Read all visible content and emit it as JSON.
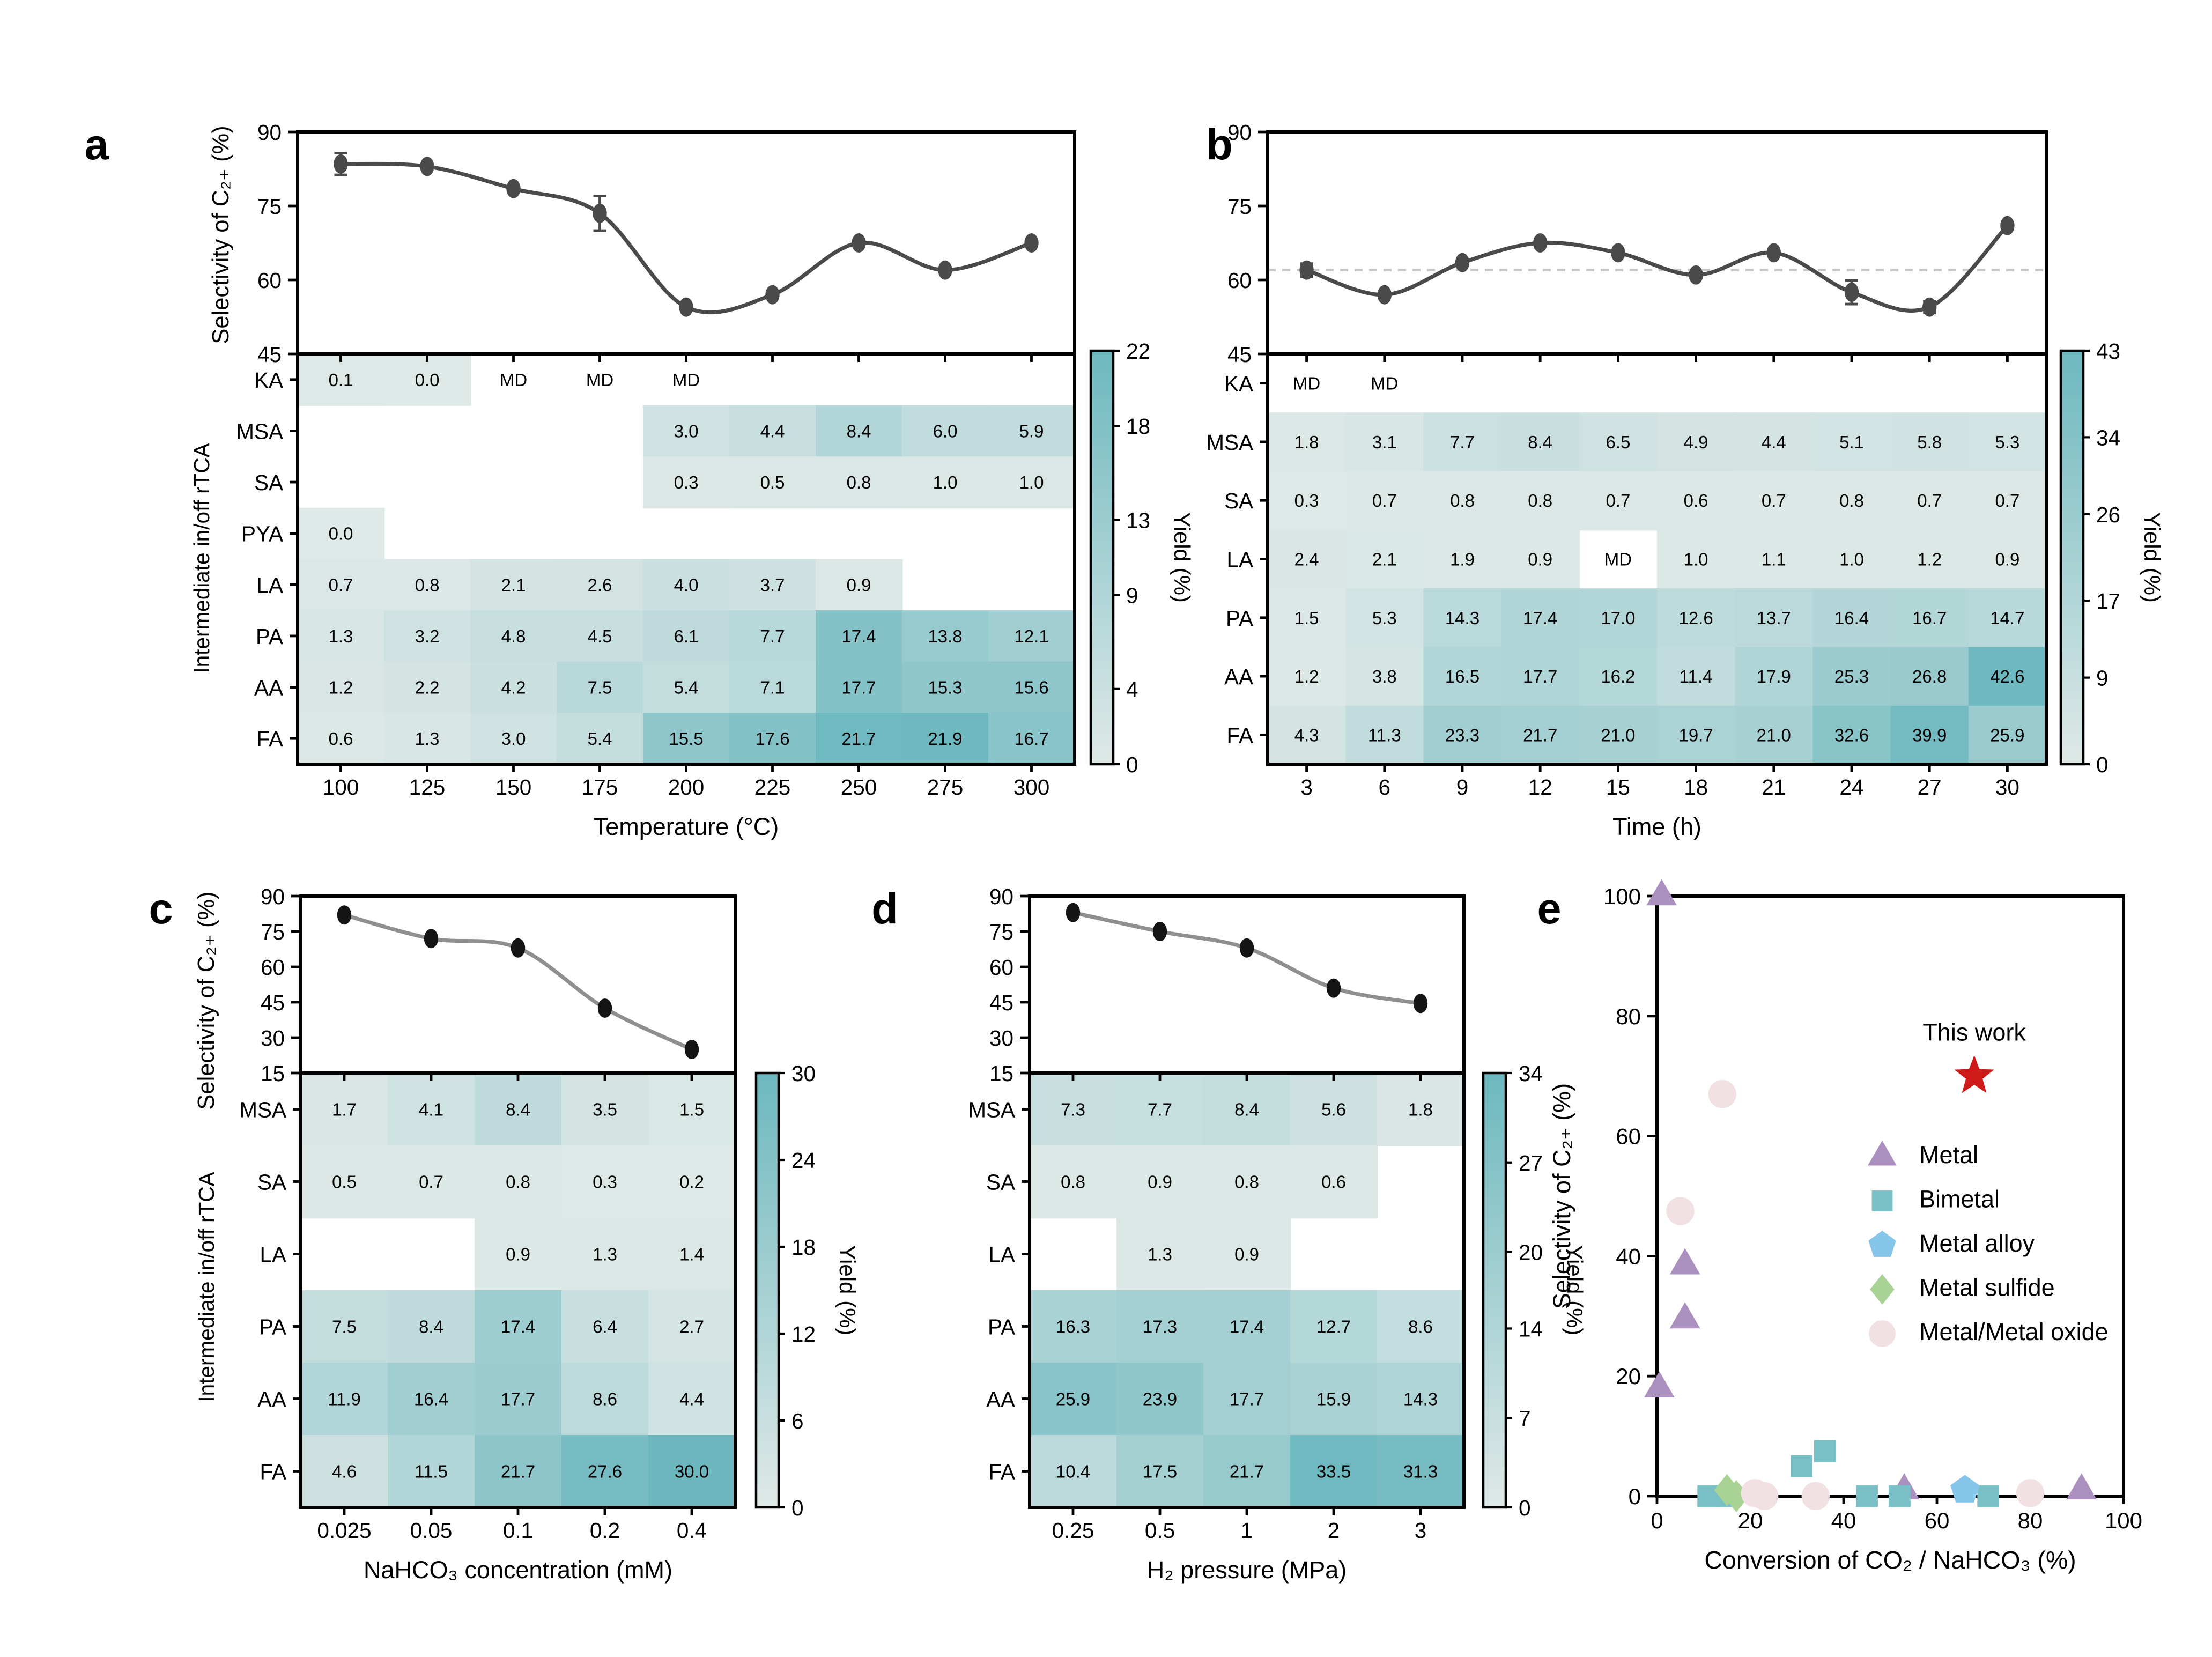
{
  "figure": {
    "description": "Five-panel scientific figure: selectivity line plots with intermediate-yield heatmaps (a-d) and a benchmark scatter plot (e)",
    "colors": {
      "heatmap_low": "#dfe9e7",
      "heatmap_high": "#6db8bf",
      "line_ab": "#4a4a4a",
      "line_cd": "#8f8f8f",
      "marker_cd": "#141414",
      "dashed_ref": "#c9c9c9",
      "axis": "#000000"
    }
  },
  "chart_data": [
    {
      "panel": "a",
      "type": "line+heatmap",
      "line": {
        "ylabel": "Selectivity of C₂₊ (%)",
        "ylim": [
          45,
          90
        ],
        "yticks": [
          45,
          60,
          75,
          90
        ],
        "x": [
          100,
          125,
          150,
          175,
          200,
          225,
          250,
          275,
          300
        ],
        "y": [
          83.5,
          83,
          78.5,
          73.5,
          54.5,
          57,
          67.5,
          62,
          67.5
        ],
        "yerr": [
          2.2,
          0,
          0,
          3.5,
          0,
          0,
          0,
          0,
          0
        ]
      },
      "heatmap": {
        "ylabel": "Intermediate in/off rTCA",
        "xlabel": "Temperature (°C)",
        "rows": [
          "KA",
          "MSA",
          "SA",
          "PYA",
          "LA",
          "PA",
          "AA",
          "FA"
        ],
        "cols": [
          "100",
          "125",
          "150",
          "175",
          "200",
          "225",
          "250",
          "275",
          "300"
        ],
        "values": [
          [
            0.1,
            0.0,
            "MD",
            "MD",
            "MD",
            null,
            null,
            null,
            null
          ],
          [
            null,
            null,
            null,
            null,
            3.0,
            4.4,
            8.4,
            6.0,
            5.9
          ],
          [
            null,
            null,
            null,
            null,
            0.3,
            0.5,
            0.8,
            1.0,
            1.0
          ],
          [
            0.0,
            null,
            null,
            null,
            null,
            null,
            null,
            null,
            null
          ],
          [
            0.7,
            0.8,
            2.1,
            2.6,
            4.0,
            3.7,
            0.9,
            null,
            null
          ],
          [
            1.3,
            3.2,
            4.8,
            4.5,
            6.1,
            7.7,
            17.4,
            13.8,
            12.1
          ],
          [
            1.2,
            2.2,
            4.2,
            7.5,
            5.4,
            7.1,
            17.7,
            15.3,
            15.6
          ],
          [
            0.6,
            1.3,
            3.0,
            5.4,
            15.5,
            17.6,
            21.7,
            21.9,
            16.7
          ]
        ],
        "colorbar": {
          "label": "Yield (%)",
          "vmax": 22,
          "ticks": [
            0,
            4,
            9,
            13,
            18,
            22
          ]
        }
      }
    },
    {
      "panel": "b",
      "type": "line+heatmap",
      "line": {
        "ylim": [
          45,
          90
        ],
        "yticks": [
          45,
          60,
          75,
          90
        ],
        "x": [
          3,
          6,
          9,
          12,
          15,
          18,
          21,
          24,
          27,
          30
        ],
        "y": [
          62,
          57,
          63.5,
          67.5,
          65.5,
          61,
          65.5,
          57.5,
          54.5,
          71
        ],
        "yerr": [
          1.3,
          0,
          0,
          0,
          0,
          0,
          0,
          2.4,
          1.2,
          0
        ],
        "dashed_ref": 62
      },
      "heatmap": {
        "xlabel": "Time (h)",
        "rows": [
          "KA",
          "MSA",
          "SA",
          "LA",
          "PA",
          "AA",
          "FA"
        ],
        "cols": [
          "3",
          "6",
          "9",
          "12",
          "15",
          "18",
          "21",
          "24",
          "27",
          "30"
        ],
        "values": [
          [
            "MD",
            "MD",
            null,
            null,
            null,
            null,
            null,
            null,
            null,
            null
          ],
          [
            1.8,
            3.1,
            7.7,
            8.4,
            6.5,
            4.9,
            4.4,
            5.1,
            5.8,
            5.3
          ],
          [
            0.3,
            0.7,
            0.8,
            0.8,
            0.7,
            0.6,
            0.7,
            0.8,
            0.7,
            0.7
          ],
          [
            2.4,
            2.1,
            1.9,
            0.9,
            "MD",
            1.0,
            1.1,
            1.0,
            1.2,
            0.9
          ],
          [
            1.5,
            5.3,
            14.3,
            17.4,
            17.0,
            12.6,
            13.7,
            16.4,
            16.7,
            14.7
          ],
          [
            1.2,
            3.8,
            16.5,
            17.7,
            16.2,
            11.4,
            17.9,
            25.3,
            26.8,
            42.6
          ],
          [
            4.3,
            11.3,
            23.3,
            21.7,
            21.0,
            19.7,
            21.0,
            32.6,
            39.9,
            25.9
          ]
        ],
        "colorbar": {
          "label": "Yield (%)",
          "vmax": 43,
          "ticks": [
            0,
            9,
            17,
            26,
            34,
            43
          ]
        }
      }
    },
    {
      "panel": "c",
      "type": "line+heatmap",
      "line": {
        "ylabel": "Selectivity of C₂₊ (%)",
        "ylim": [
          15,
          90
        ],
        "yticks": [
          15,
          30,
          45,
          60,
          75,
          90
        ],
        "x": [
          0.025,
          0.05,
          0.1,
          0.2,
          0.4
        ],
        "y": [
          82,
          72,
          68,
          42.5,
          25
        ],
        "yerr": [
          0,
          0,
          0,
          0,
          0
        ]
      },
      "heatmap": {
        "ylabel": "Intermediate in/off rTCA",
        "xlabel": "NaHCO₃ concentration (mM)",
        "rows": [
          "MSA",
          "SA",
          "LA",
          "PA",
          "AA",
          "FA"
        ],
        "cols": [
          "0.025",
          "0.05",
          "0.1",
          "0.2",
          "0.4"
        ],
        "values": [
          [
            1.7,
            4.1,
            8.4,
            3.5,
            1.5
          ],
          [
            0.5,
            0.7,
            0.8,
            0.3,
            0.2
          ],
          [
            null,
            null,
            0.9,
            1.3,
            1.4
          ],
          [
            7.5,
            8.4,
            17.4,
            6.4,
            2.7
          ],
          [
            11.9,
            16.4,
            17.7,
            8.6,
            4.4
          ],
          [
            4.6,
            11.5,
            21.7,
            27.6,
            30.0
          ]
        ],
        "colorbar": {
          "label": "Yield (%)",
          "vmax": 30,
          "ticks": [
            0,
            6,
            12,
            18,
            24,
            30
          ]
        }
      }
    },
    {
      "panel": "d",
      "type": "line+heatmap",
      "line": {
        "ylim": [
          15,
          90
        ],
        "yticks": [
          15,
          30,
          45,
          60,
          75,
          90
        ],
        "x": [
          0.25,
          0.5,
          1,
          2,
          3
        ],
        "y": [
          83,
          75,
          68,
          51,
          44.5
        ],
        "yerr": [
          0,
          0,
          0,
          0,
          0
        ]
      },
      "heatmap": {
        "xlabel": "H₂ pressure (MPa)",
        "rows": [
          "MSA",
          "SA",
          "LA",
          "PA",
          "AA",
          "FA"
        ],
        "cols": [
          "0.25",
          "0.5",
          "1",
          "2",
          "3"
        ],
        "values": [
          [
            7.3,
            7.7,
            8.4,
            5.6,
            1.8
          ],
          [
            0.8,
            0.9,
            0.8,
            0.6,
            null
          ],
          [
            null,
            1.3,
            0.9,
            null,
            null
          ],
          [
            16.3,
            17.3,
            17.4,
            12.7,
            8.6
          ],
          [
            25.9,
            23.9,
            17.7,
            15.9,
            14.3
          ],
          [
            10.4,
            17.5,
            21.7,
            33.5,
            31.3
          ]
        ],
        "colorbar": {
          "label": "Yield (%)",
          "vmax": 34,
          "ticks": [
            0,
            7,
            14,
            20,
            27,
            34
          ]
        }
      }
    },
    {
      "panel": "e",
      "type": "scatter",
      "xlabel": "Conversion of CO₂ / NaHCO₃ (%)",
      "ylabel": "Selectivity of C₂₊ (%)",
      "xlim": [
        0,
        100
      ],
      "ylim": [
        0,
        100
      ],
      "xticks": [
        0,
        20,
        40,
        60,
        80,
        100
      ],
      "yticks": [
        0,
        20,
        40,
        60,
        80,
        100
      ],
      "legend_position": "center-right",
      "series": [
        {
          "name": "Metal",
          "marker": "triangle",
          "color": "#ab8fbe",
          "points": [
            [
              1,
              100
            ],
            [
              6,
              38.5
            ],
            [
              6,
              29.5
            ],
            [
              0.5,
              18
            ],
            [
              53,
              1
            ],
            [
              91,
              1
            ]
          ]
        },
        {
          "name": "Bimetal",
          "marker": "square",
          "color": "#79bfc6",
          "points": [
            [
              11,
              0
            ],
            [
              15,
              0
            ],
            [
              31,
              5
            ],
            [
              36,
              7.5
            ],
            [
              45,
              0
            ],
            [
              52,
              0
            ],
            [
              71,
              0
            ]
          ]
        },
        {
          "name": "Metal alloy",
          "marker": "pentagon",
          "color": "#86c6ea",
          "points": [
            [
              66,
              1
            ]
          ]
        },
        {
          "name": "Metal sulfide",
          "marker": "diamond",
          "color": "#a9d395",
          "points": [
            [
              15,
              1
            ],
            [
              17,
              0
            ]
          ]
        },
        {
          "name": "Metal/Metal oxide",
          "marker": "circle",
          "color": "#f1e1e2",
          "points": [
            [
              14,
              67
            ],
            [
              5,
              47.5
            ],
            [
              21,
              0.5
            ],
            [
              23,
              0
            ],
            [
              34,
              0
            ],
            [
              80,
              0.5
            ]
          ]
        }
      ],
      "highlight": {
        "name": "This work",
        "marker": "star",
        "color": "#cf1a1a",
        "point": [
          68,
          70
        ]
      }
    }
  ]
}
